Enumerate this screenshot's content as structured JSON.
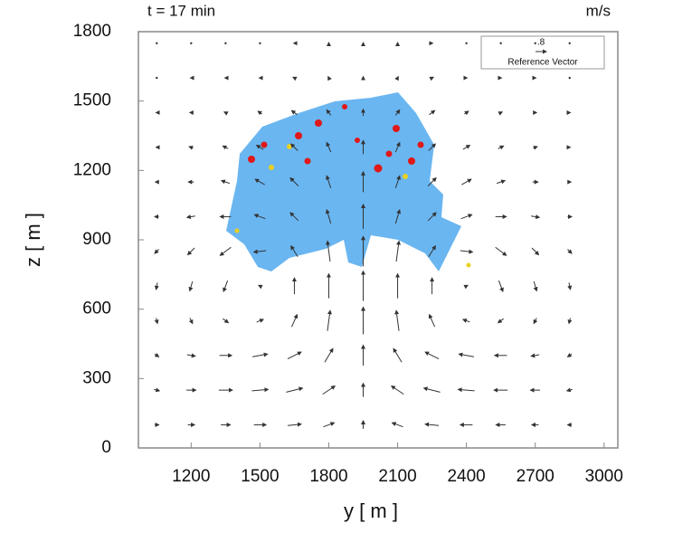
{
  "chart_data": {
    "type": "vector",
    "title": "t = 17 min",
    "units_label": "m/s",
    "xlabel": "y [ m ]",
    "ylabel": "z [ m ]",
    "xlim": [
      970,
      3060
    ],
    "ylim": [
      0,
      1800
    ],
    "xticks": [
      1200,
      1500,
      1800,
      2100,
      2400,
      2700,
      3000
    ],
    "yticks": [
      0,
      300,
      600,
      900,
      1200,
      1500,
      1800
    ],
    "color": "#333333",
    "cloud_color": "#5aaef0",
    "reference_value": {
      "value": 0.8,
      "label": ".8"
    },
    "reference_label": "Reference Vector",
    "x": [
      1050,
      1200,
      1350,
      1500,
      1650,
      1800,
      1950,
      2100,
      2250,
      2400,
      2550,
      2700,
      2850
    ],
    "z": [
      100,
      250,
      400,
      550,
      700,
      850,
      1000,
      1150,
      1300,
      1450,
      1600,
      1750
    ],
    "u": [
      [
        0.3,
        0.5,
        0.7,
        0.9,
        1.0,
        0.8,
        0,
        -0.8,
        -1.0,
        -0.9,
        -0.7,
        -0.5,
        -0.3
      ],
      [
        0.4,
        0.7,
        1.0,
        1.2,
        1.2,
        0.9,
        0,
        -0.9,
        -1.2,
        -1.2,
        -1.0,
        -0.7,
        -0.4
      ],
      [
        0.3,
        0.6,
        0.9,
        1.1,
        1.0,
        0.6,
        0,
        -0.6,
        -1.0,
        -1.1,
        -0.9,
        -0.6,
        -0.3
      ],
      [
        0.1,
        0.2,
        0.4,
        0.5,
        0.4,
        0.2,
        0,
        -0.2,
        -0.4,
        -0.5,
        -0.4,
        -0.2,
        -0.1
      ],
      [
        -0.1,
        -0.2,
        -0.3,
        -0.2,
        0,
        0,
        0,
        0,
        0,
        0.2,
        0.3,
        0.2,
        0.1
      ],
      [
        -0.3,
        -0.5,
        -0.8,
        -0.9,
        -0.5,
        -0.2,
        0,
        0.2,
        0.5,
        0.9,
        0.8,
        0.5,
        0.3
      ],
      [
        -0.3,
        -0.6,
        -0.8,
        -0.8,
        -0.6,
        -0.3,
        0,
        0.3,
        0.6,
        0.8,
        0.8,
        0.6,
        0.3
      ],
      [
        -0.2,
        -0.4,
        -0.6,
        -0.7,
        -0.6,
        -0.3,
        0,
        0.3,
        0.6,
        0.7,
        0.6,
        0.4,
        0.2
      ],
      [
        -0.1,
        -0.3,
        -0.4,
        -0.5,
        -0.5,
        -0.3,
        0,
        0.3,
        0.5,
        0.5,
        0.4,
        0.3,
        0.1
      ],
      [
        -0.1,
        -0.2,
        -0.2,
        -0.3,
        -0.4,
        -0.3,
        0,
        0.3,
        0.4,
        0.3,
        0.2,
        0.2,
        0.1
      ],
      [
        0,
        -0.1,
        -0.1,
        -0.1,
        -0.2,
        -0.1,
        0,
        0.1,
        0.2,
        0.1,
        0.1,
        0.1,
        0
      ],
      [
        0,
        0,
        0,
        0,
        -0.1,
        0,
        0,
        0,
        0.1,
        0,
        0,
        0,
        0
      ]
    ],
    "w": [
      [
        0,
        0,
        0,
        0,
        0.1,
        0.3,
        0.6,
        0.3,
        0.1,
        0,
        0,
        0,
        0
      ],
      [
        -0.1,
        0,
        0,
        0.1,
        0.3,
        0.6,
        1.0,
        0.6,
        0.3,
        0.1,
        0,
        0,
        -0.1
      ],
      [
        -0.2,
        -0.1,
        0,
        0.2,
        0.5,
        1.0,
        1.5,
        1.0,
        0.5,
        0.2,
        0,
        -0.1,
        -0.2
      ],
      [
        -0.4,
        -0.4,
        -0.3,
        0.2,
        0.9,
        1.5,
        2.0,
        1.5,
        0.9,
        0.2,
        -0.3,
        -0.4,
        -0.4
      ],
      [
        -0.5,
        -0.7,
        -0.8,
        0.1,
        1.2,
        1.8,
        2.2,
        1.8,
        1.2,
        0.1,
        -0.8,
        -0.7,
        -0.5
      ],
      [
        -0.3,
        -0.5,
        -0.6,
        -0.1,
        0.8,
        1.5,
        2.2,
        1.5,
        0.8,
        -0.1,
        -0.6,
        -0.5,
        -0.3
      ],
      [
        0,
        -0.1,
        0,
        0.3,
        0.6,
        1.0,
        1.8,
        1.0,
        0.6,
        0.3,
        0,
        -0.1,
        0
      ],
      [
        0,
        0,
        0.2,
        0.4,
        0.6,
        0.9,
        1.5,
        0.9,
        0.6,
        0.4,
        0.2,
        0,
        0
      ],
      [
        0,
        0.1,
        0.2,
        0.3,
        0.5,
        0.7,
        1.0,
        0.7,
        0.5,
        0.3,
        0.2,
        0.1,
        0
      ],
      [
        0,
        0,
        0.1,
        0.2,
        0.3,
        0.4,
        0.5,
        0.4,
        0.3,
        0.2,
        0.1,
        0,
        0
      ],
      [
        0,
        0,
        0,
        0,
        0.1,
        0.2,
        0.2,
        0.2,
        0.1,
        0,
        0,
        0,
        0
      ],
      [
        0,
        0,
        0,
        0,
        0,
        0.1,
        0.1,
        0.1,
        0,
        0,
        0,
        0,
        0
      ]
    ]
  }
}
